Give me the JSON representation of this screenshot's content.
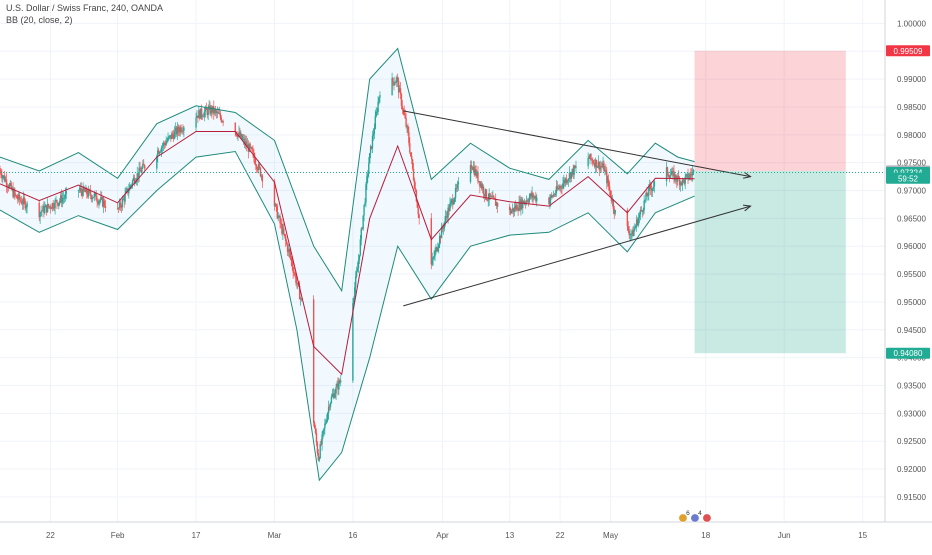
{
  "header": {
    "symbol_line": "U.S. Dollar / Swiss Franc, 240, OANDA",
    "indicator_line": "BB (20, close, 2)"
  },
  "chart_data": {
    "type": "candlestick",
    "y_axis": {
      "ylim": [
        0.9105,
        1.0042
      ],
      "ticks": [
        "1.00000",
        "0.99500",
        "0.99000",
        "0.98500",
        "0.98000",
        "0.97500",
        "0.97000",
        "0.96500",
        "0.96000",
        "0.95500",
        "0.95000",
        "0.94500",
        "0.94000",
        "0.93500",
        "0.93000",
        "0.92500",
        "0.92000",
        "0.91500"
      ],
      "tick_values": [
        1.0,
        0.995,
        0.99,
        0.985,
        0.98,
        0.975,
        0.97,
        0.965,
        0.96,
        0.955,
        0.95,
        0.945,
        0.94,
        0.935,
        0.93,
        0.925,
        0.92,
        0.915
      ]
    },
    "x_axis": {
      "date_range": [
        "2020-01-13",
        "2020-06-19"
      ],
      "ticks": [
        {
          "label": "22",
          "date": "2020-01-22"
        },
        {
          "label": "Feb",
          "date": "2020-02-03"
        },
        {
          "label": "17",
          "date": "2020-02-17"
        },
        {
          "label": "Mar",
          "date": "2020-03-02"
        },
        {
          "label": "16",
          "date": "2020-03-16"
        },
        {
          "label": "Apr",
          "date": "2020-04-01"
        },
        {
          "label": "13",
          "date": "2020-04-13"
        },
        {
          "label": "22",
          "date": "2020-04-22"
        },
        {
          "label": "May",
          "date": "2020-05-01"
        },
        {
          "label": "18",
          "date": "2020-05-18"
        },
        {
          "label": "Jun",
          "date": "2020-06-01"
        },
        {
          "label": "15",
          "date": "2020-06-15"
        }
      ]
    },
    "price_path": [
      [
        "2020-01-13",
        0.9738
      ],
      [
        "2020-01-16",
        0.9688
      ],
      [
        "2020-01-20",
        0.966
      ],
      [
        "2020-01-23",
        0.9678
      ],
      [
        "2020-01-27",
        0.9702
      ],
      [
        "2020-01-30",
        0.969
      ],
      [
        "2020-02-03",
        0.966
      ],
      [
        "2020-02-06",
        0.972
      ],
      [
        "2020-02-10",
        0.9768
      ],
      [
        "2020-02-13",
        0.98
      ],
      [
        "2020-02-17",
        0.9835
      ],
      [
        "2020-02-20",
        0.9845
      ],
      [
        "2020-02-24",
        0.981
      ],
      [
        "2020-02-27",
        0.977
      ],
      [
        "2020-03-02",
        0.968
      ],
      [
        "2020-03-05",
        0.958
      ],
      [
        "2020-03-08",
        0.946
      ],
      [
        "2020-03-09",
        0.93
      ],
      [
        "2020-03-10",
        0.922
      ],
      [
        "2020-03-12",
        0.932
      ],
      [
        "2020-03-14",
        0.936
      ],
      [
        "2020-03-17",
        0.956
      ],
      [
        "2020-03-19",
        0.975
      ],
      [
        "2020-03-21",
        0.988
      ],
      [
        "2020-03-24",
        0.99
      ],
      [
        "2020-03-26",
        0.98
      ],
      [
        "2020-03-28",
        0.965
      ],
      [
        "2020-03-30",
        0.956
      ],
      [
        "2020-04-02",
        0.966
      ],
      [
        "2020-04-06",
        0.9755
      ],
      [
        "2020-04-09",
        0.969
      ],
      [
        "2020-04-13",
        0.966
      ],
      [
        "2020-04-17",
        0.969
      ],
      [
        "2020-04-20",
        0.968
      ],
      [
        "2020-04-24",
        0.973
      ],
      [
        "2020-04-27",
        0.976
      ],
      [
        "2020-04-30",
        0.974
      ],
      [
        "2020-05-02",
        0.966
      ],
      [
        "2020-05-05",
        0.962
      ],
      [
        "2020-05-08",
        0.97
      ],
      [
        "2020-05-11",
        0.9735
      ],
      [
        "2020-05-14",
        0.9715
      ],
      [
        "2020-05-16",
        0.9733
      ]
    ],
    "bb_upper_path": [
      [
        "2020-01-13",
        0.976
      ],
      [
        "2020-01-20",
        0.9735
      ],
      [
        "2020-01-27",
        0.9768
      ],
      [
        "2020-02-03",
        0.9722
      ],
      [
        "2020-02-10",
        0.982
      ],
      [
        "2020-02-17",
        0.9852
      ],
      [
        "2020-02-24",
        0.984
      ],
      [
        "2020-03-02",
        0.979
      ],
      [
        "2020-03-09",
        0.96
      ],
      [
        "2020-03-14",
        0.952
      ],
      [
        "2020-03-19",
        0.99
      ],
      [
        "2020-03-24",
        0.9955
      ],
      [
        "2020-03-30",
        0.972
      ],
      [
        "2020-04-06",
        0.9785
      ],
      [
        "2020-04-13",
        0.974
      ],
      [
        "2020-04-20",
        0.972
      ],
      [
        "2020-04-27",
        0.979
      ],
      [
        "2020-05-04",
        0.973
      ],
      [
        "2020-05-09",
        0.9785
      ],
      [
        "2020-05-13",
        0.976
      ],
      [
        "2020-05-16",
        0.9752
      ]
    ],
    "bb_lower_path": [
      [
        "2020-01-13",
        0.9665
      ],
      [
        "2020-01-20",
        0.9625
      ],
      [
        "2020-01-27",
        0.9655
      ],
      [
        "2020-02-03",
        0.963
      ],
      [
        "2020-02-10",
        0.97
      ],
      [
        "2020-02-17",
        0.976
      ],
      [
        "2020-02-24",
        0.977
      ],
      [
        "2020-03-02",
        0.964
      ],
      [
        "2020-03-06",
        0.945
      ],
      [
        "2020-03-10",
        0.918
      ],
      [
        "2020-03-14",
        0.923
      ],
      [
        "2020-03-19",
        0.94
      ],
      [
        "2020-03-24",
        0.96
      ],
      [
        "2020-03-30",
        0.9505
      ],
      [
        "2020-04-06",
        0.96
      ],
      [
        "2020-04-13",
        0.962
      ],
      [
        "2020-04-20",
        0.9625
      ],
      [
        "2020-04-27",
        0.966
      ],
      [
        "2020-05-04",
        0.959
      ],
      [
        "2020-05-09",
        0.966
      ],
      [
        "2020-05-16",
        0.969
      ]
    ],
    "bb_basis_path": [
      [
        "2020-01-13",
        0.9712
      ],
      [
        "2020-01-20",
        0.9682
      ],
      [
        "2020-01-27",
        0.971
      ],
      [
        "2020-02-03",
        0.9678
      ],
      [
        "2020-02-10",
        0.976
      ],
      [
        "2020-02-17",
        0.9806
      ],
      [
        "2020-02-24",
        0.9806
      ],
      [
        "2020-03-02",
        0.9715
      ],
      [
        "2020-03-09",
        0.942
      ],
      [
        "2020-03-14",
        0.937
      ],
      [
        "2020-03-19",
        0.965
      ],
      [
        "2020-03-24",
        0.978
      ],
      [
        "2020-03-30",
        0.9612
      ],
      [
        "2020-04-06",
        0.9692
      ],
      [
        "2020-04-13",
        0.968
      ],
      [
        "2020-04-20",
        0.9672
      ],
      [
        "2020-04-27",
        0.9725
      ],
      [
        "2020-05-04",
        0.966
      ],
      [
        "2020-05-09",
        0.9722
      ],
      [
        "2020-05-16",
        0.9721
      ]
    ],
    "trendlines": [
      {
        "from": [
          "2020-03-25",
          0.9843
        ],
        "to": [
          "2020-05-26",
          0.9725
        ]
      },
      {
        "from": [
          "2020-03-25",
          0.9493
        ],
        "to": [
          "2020-05-26",
          0.9672
        ]
      }
    ],
    "position": {
      "entry_date": "2020-05-16",
      "end_date": "2020-06-12",
      "entry": 0.97352,
      "stop": 0.99509,
      "target": 0.9408
    },
    "price_labels": [
      {
        "text": "0.99509",
        "value": 0.99509,
        "color": "#f23645"
      },
      {
        "text": "0.97352",
        "value": 0.97352,
        "color": "#b2b5be"
      },
      {
        "text": "0.97324",
        "value": 0.97324,
        "color": "#22ab94"
      },
      {
        "text": "59:52",
        "value": 0.9722,
        "color": "#22ab94"
      },
      {
        "text": "0.94080",
        "value": 0.9408,
        "color": "#22ab94"
      }
    ],
    "colors": {
      "up": "#26a69a",
      "down": "#ef5350",
      "bb_band": "#1e8b7a",
      "bb_fill": "rgba(33,150,243,0.06)",
      "basis": "#b71c3a",
      "stop_zone": "rgba(242,54,69,0.22)",
      "target_zone": "rgba(8,153,129,0.22)",
      "current": "#22ab94"
    },
    "flags": [
      "6",
      "4"
    ]
  }
}
